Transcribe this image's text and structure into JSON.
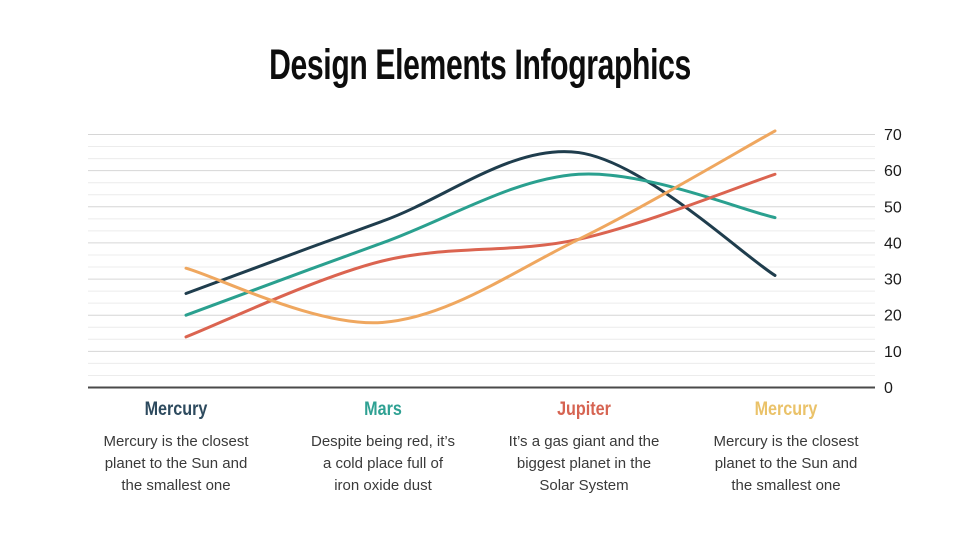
{
  "slide": {
    "title": "Design Elements Infographics",
    "title_color": "#0d0d0d",
    "background": "#ffffff"
  },
  "chart_data": {
    "type": "line",
    "smooth": true,
    "grid": true,
    "legend": "none",
    "tick_side": "right",
    "categories": [
      "Mercury",
      "Mars",
      "Jupiter",
      "Mercury"
    ],
    "series": [
      {
        "name": "Mercury (dark)",
        "color": "#1f3d4d",
        "values": [
          26,
          46,
          65,
          31
        ]
      },
      {
        "name": "Mars (teal)",
        "color": "#2aa08f",
        "values": [
          20,
          40,
          59,
          47
        ]
      },
      {
        "name": "Jupiter (coral)",
        "color": "#db6450",
        "values": [
          14,
          35,
          41,
          59
        ]
      },
      {
        "name": "Mercury (yellow)",
        "color": "#efa75f",
        "values": [
          33,
          18,
          41,
          71
        ]
      }
    ],
    "ylim": [
      0,
      70
    ],
    "yticks": [
      0,
      10,
      20,
      30,
      40,
      50,
      60,
      70
    ],
    "minor_gridlines_per_major": 2,
    "colors": {
      "axis": "#4a4a4a",
      "grid_major": "#d6d6d6",
      "grid_minor": "#ececec",
      "tick_label": "#1b1b1b"
    }
  },
  "columns": [
    {
      "label": "Mercury",
      "label_color": "#2d4a5e",
      "description": "Mercury is the closest\nplanet to the Sun and\nthe smallest one"
    },
    {
      "label": "Mars",
      "label_color": "#2fa193",
      "description": "Despite being red, it’s\na cold place full of\niron oxide dust"
    },
    {
      "label": "Jupiter",
      "label_color": "#d66452",
      "description": "It’s a gas giant and the\nbiggest planet in the\nSolar System"
    },
    {
      "label": "Mercury",
      "label_color": "#eac269",
      "description": "Mercury is the closest\nplanet to the Sun and\nthe smallest one"
    }
  ]
}
